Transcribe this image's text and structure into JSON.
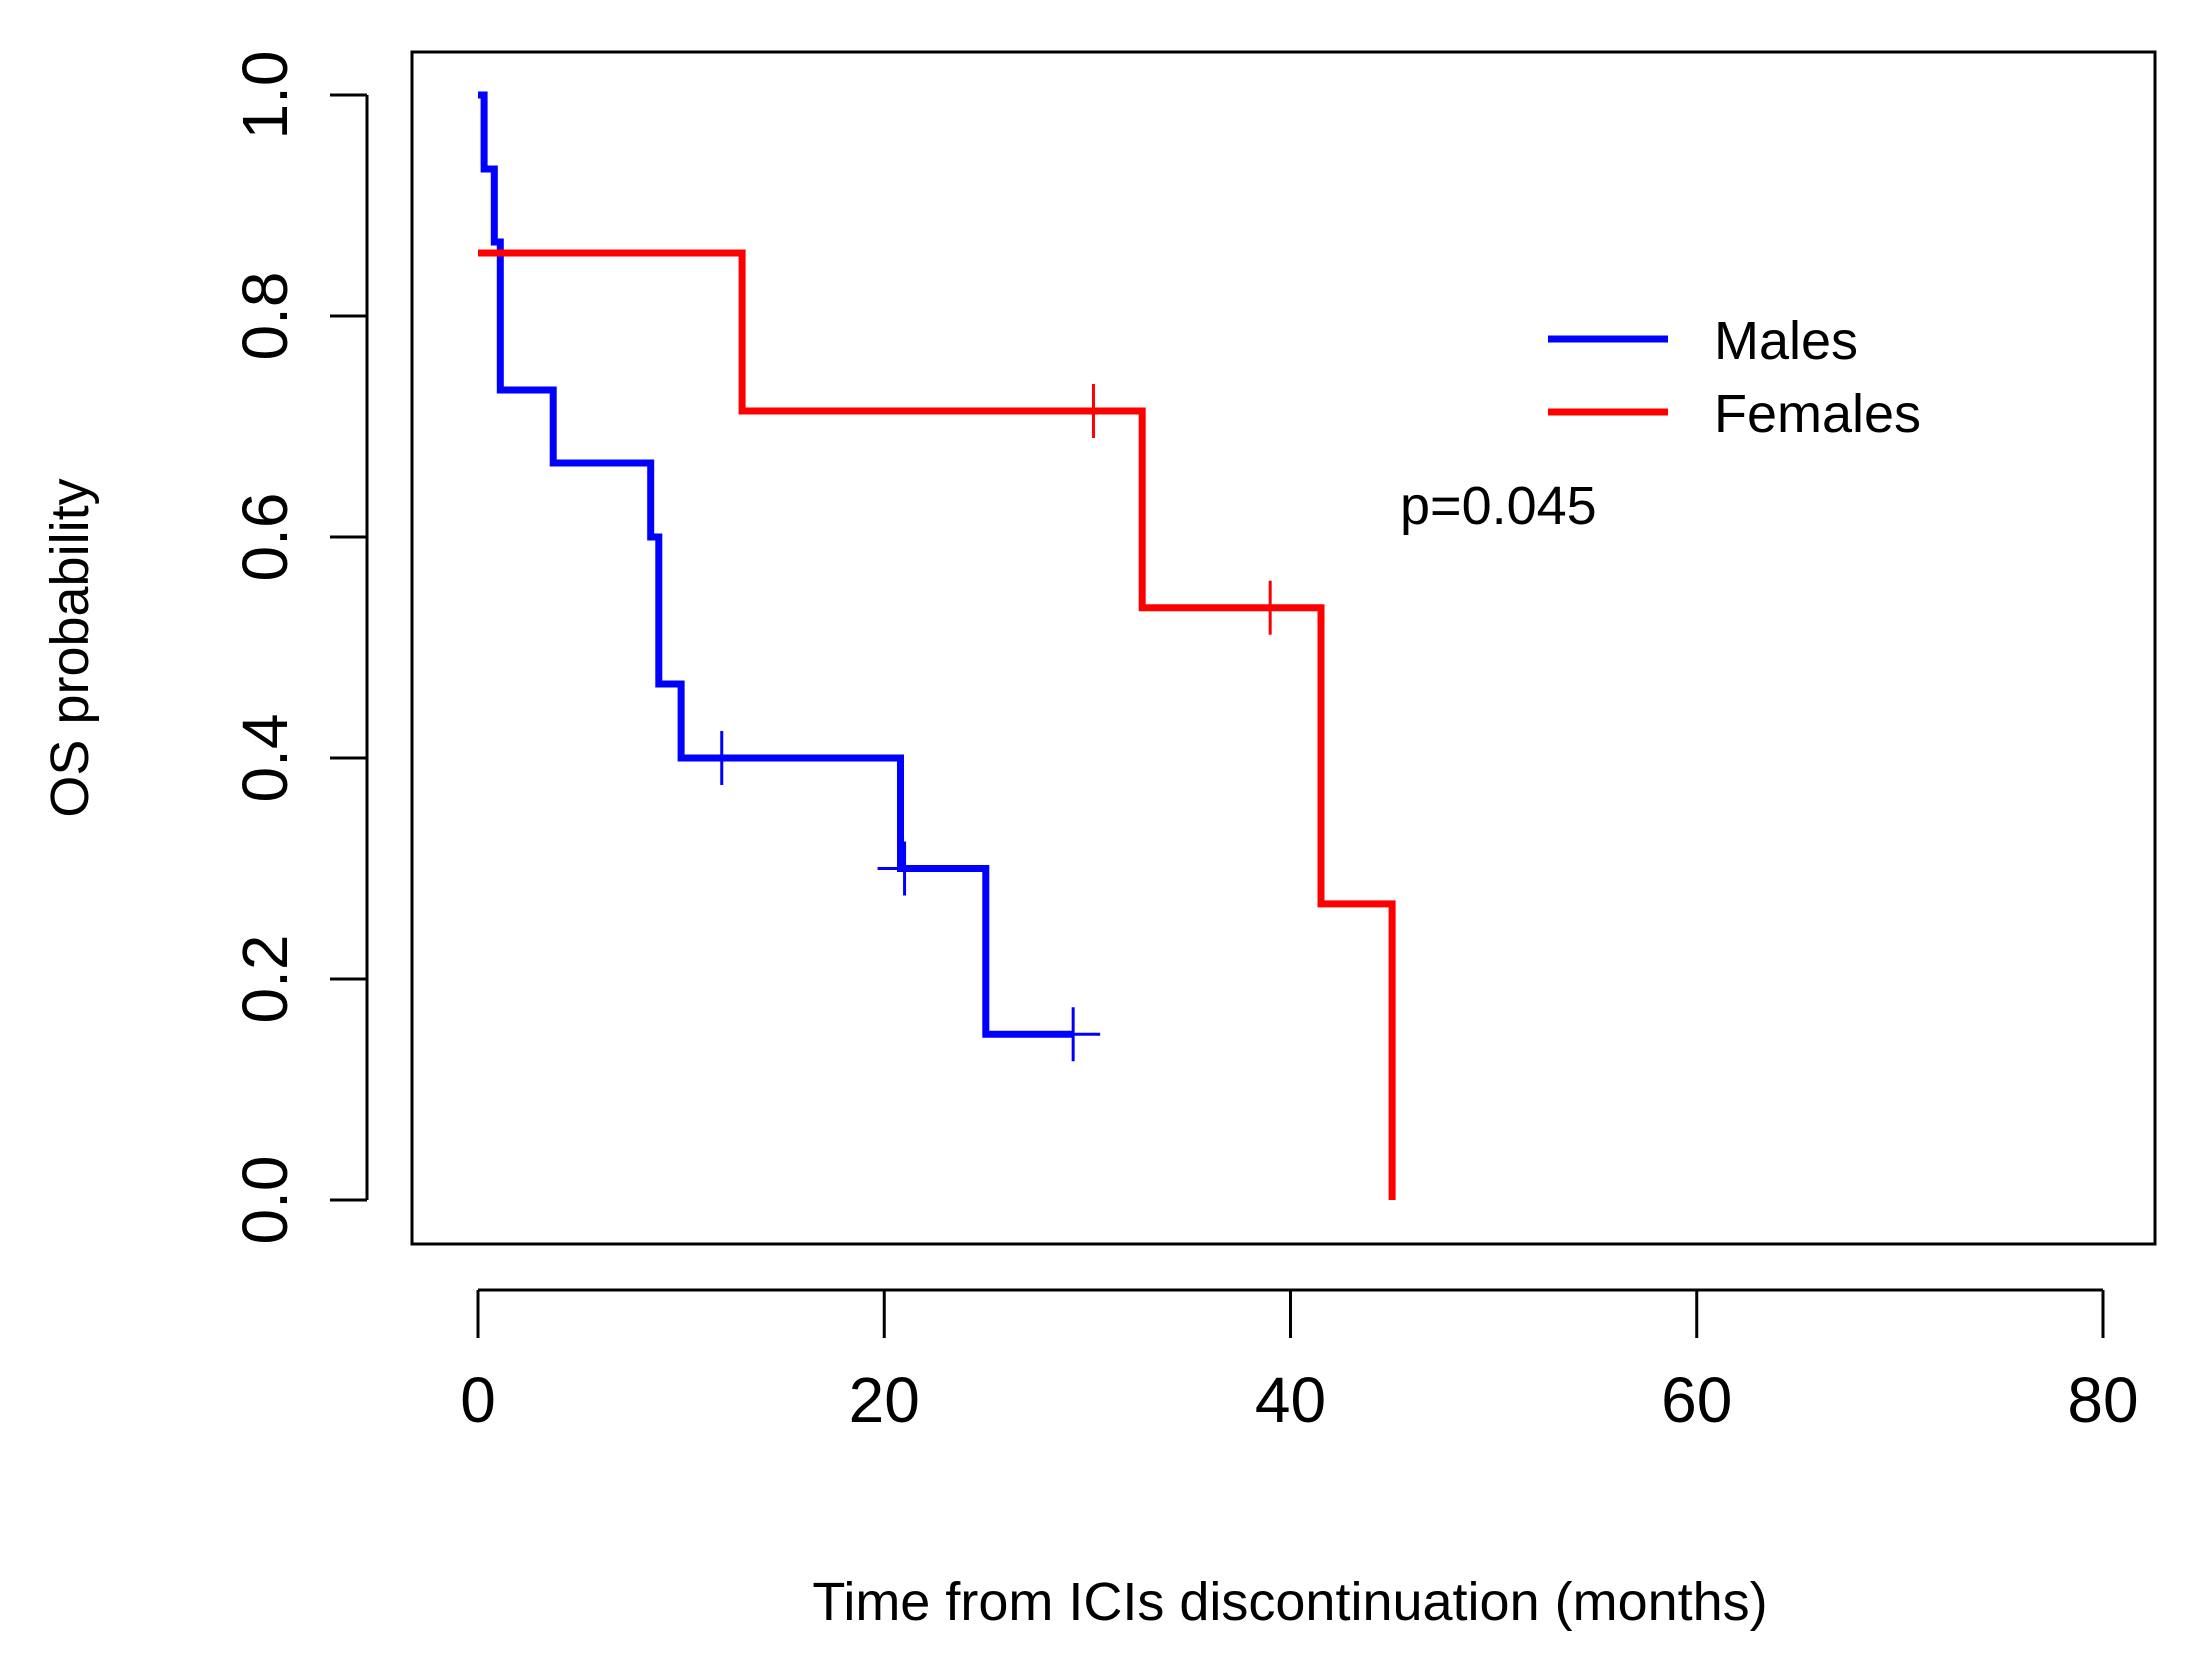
{
  "chart_data": {
    "type": "line",
    "subtype": "kaplan-meier step",
    "title": "",
    "xlabel": "Time from ICIs discontinuation (months)",
    "ylabel": "OS probability",
    "xlim": [
      0,
      80
    ],
    "ylim": [
      0,
      1
    ],
    "x_ticks": [
      0,
      20,
      40,
      60,
      80
    ],
    "x_tick_labels": [
      "0",
      "20",
      "40",
      "60",
      "80"
    ],
    "y_ticks": [
      0,
      0.2,
      0.4,
      0.6,
      0.8,
      1.0
    ],
    "y_tick_labels": [
      "0.0",
      "0.2",
      "0.4",
      "0.6",
      "0.8",
      "1.0"
    ],
    "grid": false,
    "legend_position": "top-right",
    "annotation": "p=0.045",
    "series": [
      {
        "name": "Males",
        "color": "#0000ff",
        "x": [
          0,
          0.3,
          0.3,
          0.8,
          0.8,
          1.1,
          1.1,
          3.7,
          3.7,
          8.5,
          8.5,
          8.9,
          8.9,
          10.0,
          10.0,
          20.8,
          20.8,
          25.0,
          25.0,
          29.3
        ],
        "y": [
          1.0,
          1.0,
          0.933,
          0.933,
          0.867,
          0.867,
          0.733,
          0.733,
          0.667,
          0.667,
          0.6,
          0.6,
          0.467,
          0.467,
          0.4,
          0.4,
          0.3,
          0.3,
          0.15,
          0.15
        ],
        "censored": [
          {
            "x": 12.0,
            "y": 0.4
          },
          {
            "x": 21.0,
            "y": 0.3
          },
          {
            "x": 29.3,
            "y": 0.15
          }
        ]
      },
      {
        "name": "Females",
        "color": "#ff0000",
        "x": [
          0,
          13.0,
          13.0,
          32.7,
          32.7,
          41.5,
          41.5,
          45.0,
          45.0
        ],
        "y": [
          0.857,
          0.857,
          0.714,
          0.714,
          0.536,
          0.536,
          0.268,
          0.268,
          0.0
        ],
        "censored": [
          {
            "x": 30.3,
            "y": 0.714
          },
          {
            "x": 39.0,
            "y": 0.536
          }
        ]
      }
    ]
  }
}
